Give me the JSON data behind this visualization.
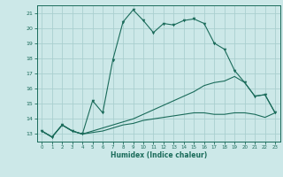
{
  "xlabel": "Humidex (Indice chaleur)",
  "background_color": "#cce8e8",
  "grid_color": "#aacfcf",
  "line_color": "#1a6b5a",
  "xlim": [
    -0.5,
    23.5
  ],
  "ylim": [
    12.5,
    21.5
  ],
  "xticks": [
    0,
    1,
    2,
    3,
    4,
    5,
    6,
    7,
    8,
    9,
    10,
    11,
    12,
    13,
    14,
    15,
    16,
    17,
    18,
    19,
    20,
    21,
    22,
    23
  ],
  "yticks": [
    13,
    14,
    15,
    16,
    17,
    18,
    19,
    20,
    21
  ],
  "line1_x": [
    0,
    1,
    2,
    3,
    4,
    5,
    6,
    7,
    8,
    9,
    10,
    11,
    12,
    13,
    14,
    15,
    16,
    17,
    18,
    19,
    20,
    21,
    22,
    23
  ],
  "line1_y": [
    13.2,
    12.8,
    13.6,
    13.2,
    13.0,
    15.2,
    14.4,
    17.9,
    20.4,
    21.2,
    20.5,
    19.7,
    20.3,
    20.2,
    20.5,
    20.6,
    20.3,
    19.0,
    18.6,
    17.2,
    16.4,
    15.5,
    15.6,
    14.4
  ],
  "line2_x": [
    0,
    1,
    2,
    3,
    4,
    5,
    6,
    7,
    8,
    9,
    10,
    11,
    12,
    13,
    14,
    15,
    16,
    17,
    18,
    19,
    20,
    21,
    22,
    23
  ],
  "line2_y": [
    13.2,
    12.8,
    13.6,
    13.2,
    13.0,
    13.2,
    13.4,
    13.6,
    13.8,
    14.0,
    14.3,
    14.6,
    14.9,
    15.2,
    15.5,
    15.8,
    16.2,
    16.4,
    16.5,
    16.8,
    16.4,
    15.5,
    15.6,
    14.4
  ],
  "line3_x": [
    0,
    1,
    2,
    3,
    4,
    5,
    6,
    7,
    8,
    9,
    10,
    11,
    12,
    13,
    14,
    15,
    16,
    17,
    18,
    19,
    20,
    21,
    22,
    23
  ],
  "line3_y": [
    13.2,
    12.8,
    13.6,
    13.2,
    13.0,
    13.1,
    13.2,
    13.4,
    13.6,
    13.7,
    13.9,
    14.0,
    14.1,
    14.2,
    14.3,
    14.4,
    14.4,
    14.3,
    14.3,
    14.4,
    14.4,
    14.3,
    14.1,
    14.4
  ]
}
